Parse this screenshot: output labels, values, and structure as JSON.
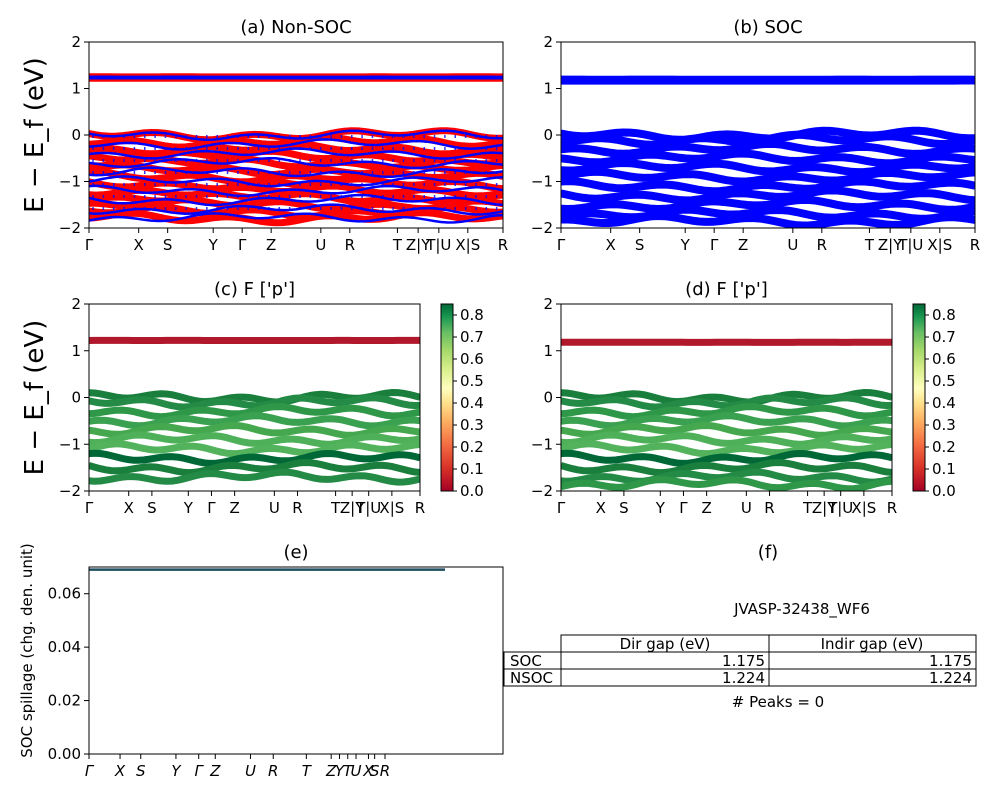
{
  "figure": {
    "ylabel_bands": "E − E_f (eV)",
    "kpath": [
      "Γ",
      "X",
      "S",
      "Y",
      "Γ",
      "Z",
      "U",
      "R",
      "T",
      "Z|Y",
      "T|U",
      "X|S",
      "R"
    ]
  },
  "chart_data": [
    {
      "id": "a",
      "type": "line",
      "title": "(a) Non-SOC",
      "ylim": [
        -2,
        2
      ],
      "yticks": [
        "2",
        "1",
        "0",
        "−1",
        "−2"
      ],
      "xticks": [
        "Γ",
        "X",
        "S",
        "Y",
        "Γ",
        "Z",
        "U",
        "R",
        "T",
        "Z|Y",
        "T|U",
        "X|S",
        "R"
      ],
      "series": [
        {
          "color": "#ff0000",
          "bands": [
            1.22,
            1.25,
            0.0,
            -0.15,
            -0.3,
            -0.45,
            -0.6,
            -0.75,
            -0.9,
            -1.05,
            -1.2,
            -1.35,
            -1.5,
            -1.65,
            -1.78
          ]
        },
        {
          "color": "#0000ff",
          "bands": [
            1.22,
            1.25,
            0.0,
            -0.2,
            -0.4,
            -0.6,
            -0.8,
            -1.0,
            -1.2,
            -1.4,
            -1.6,
            -1.78
          ]
        }
      ]
    },
    {
      "id": "b",
      "type": "line",
      "title": "(b) SOC",
      "ylim": [
        -2,
        2
      ],
      "yticks": [
        "2",
        "1",
        "0",
        "−1",
        "−2"
      ],
      "xticks": [
        "Γ",
        "X",
        "S",
        "Y",
        "Γ",
        "Z",
        "U",
        "R",
        "T",
        "Z|Y",
        "T|U",
        "X|S",
        "R"
      ],
      "series": [
        {
          "color": "#0000ff",
          "bands": [
            1.17,
            1.19,
            0.0,
            -0.1,
            -0.3,
            -0.5,
            -0.7,
            -0.9,
            -1.1,
            -1.3,
            -1.5,
            -1.7,
            -1.85
          ]
        }
      ]
    },
    {
      "id": "c",
      "type": "line",
      "title": "(c)  F ['p']",
      "ylim": [
        -2,
        2
      ],
      "yticks": [
        "2",
        "1",
        "0",
        "−1",
        "−2"
      ],
      "xticks": [
        "Γ",
        "X",
        "S",
        "Y",
        "Γ",
        "Z",
        "U",
        "R",
        "T",
        "Z|Y",
        "T|U",
        "X|S",
        "R"
      ],
      "colorbar": {
        "min": 0.0,
        "max": 0.85,
        "ticks": [
          "0.0",
          "0.1",
          "0.2",
          "0.3",
          "0.4",
          "0.5",
          "0.6",
          "0.7",
          "0.8"
        ]
      },
      "bands": [
        1.22,
        0.0,
        -0.1,
        -0.3,
        -0.5,
        -0.7,
        -0.9,
        -1.1,
        -1.3,
        -1.5,
        -1.7
      ]
    },
    {
      "id": "d",
      "type": "line",
      "title": "(d) F ['p']",
      "ylim": [
        -2,
        2
      ],
      "yticks": [
        "2",
        "1",
        "0",
        "−1",
        "−2"
      ],
      "xticks": [
        "Γ",
        "X",
        "S",
        "Y",
        "Γ",
        "Z",
        "U",
        "R",
        "T",
        "Z|Y",
        "T|U",
        "X|S",
        "R"
      ],
      "colorbar": {
        "min": 0.0,
        "max": 0.85,
        "ticks": [
          "0.0",
          "0.1",
          "0.2",
          "0.3",
          "0.4",
          "0.5",
          "0.6",
          "0.7",
          "0.8"
        ]
      },
      "bands": [
        1.18,
        0.0,
        -0.1,
        -0.3,
        -0.5,
        -0.7,
        -0.9,
        -1.1,
        -1.3,
        -1.5,
        -1.7,
        -1.85
      ]
    },
    {
      "id": "e",
      "type": "line",
      "title": "(e)",
      "ylabel": "SOC spillage (chg. den. unit)",
      "ylim": [
        0,
        0.07
      ],
      "yticks": [
        "0.06",
        "0.04",
        "0.02",
        "0.00"
      ],
      "xticks": [
        "Γ",
        "X",
        "S",
        "Y",
        "Γ",
        "Z",
        "U",
        "R",
        "T",
        "Z",
        "Y",
        "T",
        "U",
        "X",
        "S",
        "R"
      ],
      "series": [
        {
          "color": "#1f77b4",
          "values": [
            0.069,
            0.069
          ]
        }
      ]
    },
    {
      "id": "f",
      "type": "table",
      "title": "(f)",
      "subtitle": "JVASP-32438_WF6",
      "columns": [
        "Dir gap (eV)",
        "Indir gap (eV)"
      ],
      "rows": [
        {
          "label": "SOC",
          "values": [
            "1.175",
            "1.175"
          ]
        },
        {
          "label": "NSOC",
          "values": [
            "1.224",
            "1.224"
          ]
        }
      ],
      "footer": "# Peaks = 0"
    }
  ]
}
